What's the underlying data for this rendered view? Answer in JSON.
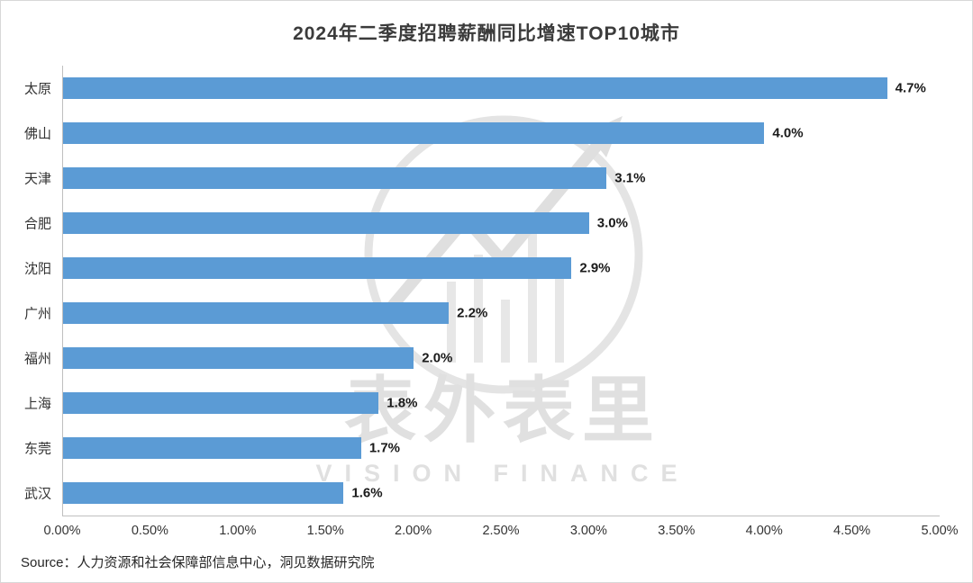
{
  "watermark": {
    "line1": "表外表里",
    "line2": "VISION FINANCE"
  },
  "source": "Source：人力资源和社会保障部信息中心，洞见数据研究院",
  "colors": {
    "bar": "#5B9BD5",
    "axis": "#BFBFBF",
    "title_text": "#3B3B3B",
    "source_text": "#262626",
    "watermark": "#E0E0E0"
  },
  "chart_data": {
    "type": "bar",
    "orientation": "horizontal",
    "title": "2024年二季度招聘薪酬同比增速TOP10城市",
    "categories": [
      "太原",
      "佛山",
      "天津",
      "合肥",
      "沈阳",
      "广州",
      "福州",
      "上海",
      "东莞",
      "武汉"
    ],
    "values": [
      4.7,
      4.0,
      3.1,
      3.0,
      2.9,
      2.2,
      2.0,
      1.8,
      1.7,
      1.6
    ],
    "value_labels": [
      "4.7%",
      "4.0%",
      "3.1%",
      "3.0%",
      "2.9%",
      "2.2%",
      "2.0%",
      "1.8%",
      "1.7%",
      "1.6%"
    ],
    "xlabel": "",
    "ylabel": "",
    "xlim": [
      0,
      5
    ],
    "x_ticks": [
      "0.00%",
      "0.50%",
      "1.00%",
      "1.50%",
      "2.00%",
      "2.50%",
      "3.00%",
      "3.50%",
      "4.00%",
      "4.50%",
      "5.00%"
    ],
    "grid": false,
    "legend": false
  }
}
